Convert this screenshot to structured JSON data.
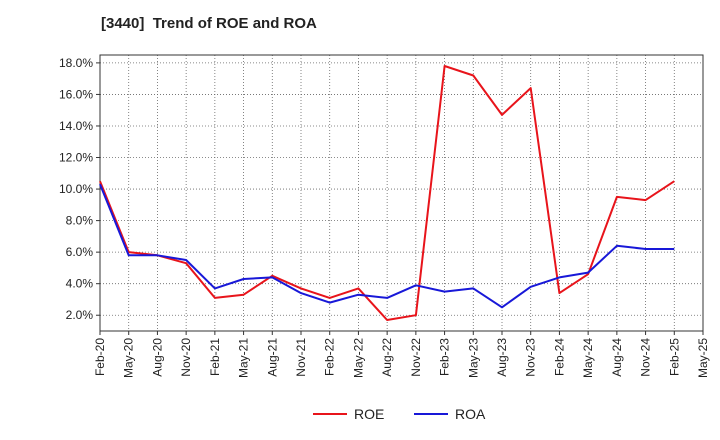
{
  "chart_data": {
    "type": "line",
    "title": "[3440]  Trend of ROE and ROA",
    "xlabel": "",
    "ylabel": "",
    "x": [
      "Feb-20",
      "May-20",
      "Aug-20",
      "Nov-20",
      "Feb-21",
      "May-21",
      "Aug-21",
      "Nov-21",
      "Feb-22",
      "May-22",
      "Aug-22",
      "Nov-22",
      "Feb-23",
      "May-23",
      "Aug-23",
      "Nov-23",
      "Feb-24",
      "May-24",
      "Aug-24",
      "Nov-24",
      "Feb-25",
      "May-25"
    ],
    "ylim": [
      1.0,
      18.5
    ],
    "y_ticks": [
      2.0,
      4.0,
      6.0,
      8.0,
      10.0,
      12.0,
      14.0,
      16.0,
      18.0
    ],
    "y_tick_labels": [
      "2.0%",
      "4.0%",
      "6.0%",
      "8.0%",
      "10.0%",
      "12.0%",
      "14.0%",
      "16.0%",
      "18.0%"
    ],
    "grid": true,
    "legend_position": "bottom-center",
    "series": [
      {
        "name": "ROE",
        "color": "#e8141b",
        "values": [
          10.5,
          6.0,
          5.8,
          5.3,
          3.1,
          3.3,
          4.5,
          3.7,
          3.1,
          3.7,
          1.7,
          2.0,
          17.8,
          17.2,
          14.7,
          16.4,
          3.4,
          4.6,
          9.5,
          9.3,
          10.5,
          null
        ]
      },
      {
        "name": "ROA",
        "color": "#1818d8",
        "values": [
          10.3,
          5.8,
          5.8,
          5.5,
          3.7,
          4.3,
          4.4,
          3.4,
          2.8,
          3.3,
          3.1,
          3.9,
          3.5,
          3.7,
          2.5,
          3.8,
          4.4,
          4.7,
          6.4,
          6.2,
          6.2,
          null
        ]
      }
    ]
  }
}
